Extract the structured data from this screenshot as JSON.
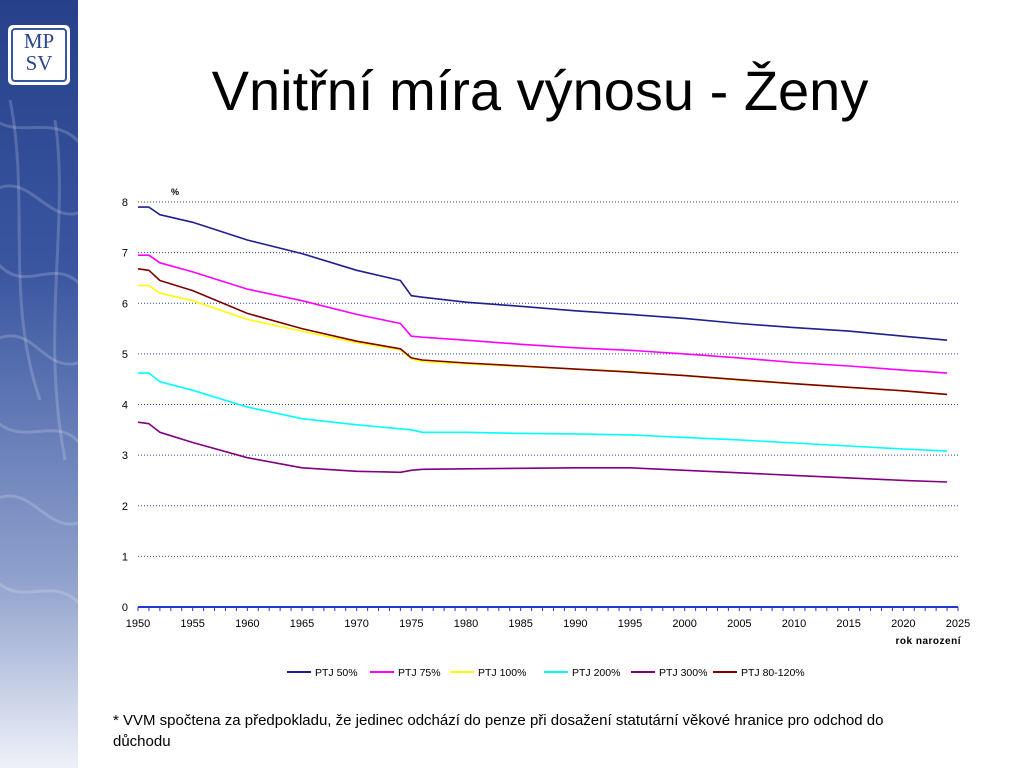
{
  "slide": {
    "title": "Vnitřní míra výnosu - Ženy",
    "logo_line1": "MP",
    "logo_line2": "SV",
    "footnote": "* VVM spočtena za předpokladu, že jedinec odchází do penze při dosažení statutární věkové hranice pro odchod do důchodu"
  },
  "chart_data": {
    "type": "line",
    "title": "",
    "xlabel": "rok narození",
    "ylabel": "%",
    "xlim": [
      1950,
      2025
    ],
    "ylim": [
      0,
      8
    ],
    "x_ticks": [
      "1950",
      "1955",
      "1960",
      "1965",
      "1970",
      "1975",
      "1980",
      "1985",
      "1990",
      "1995",
      "2000",
      "2005",
      "2010",
      "2015",
      "2020",
      "2025"
    ],
    "y_ticks": [
      "0",
      "1",
      "2",
      "3",
      "4",
      "5",
      "6",
      "7",
      "8"
    ],
    "grid": "horizontal dotted",
    "legend": "bottom",
    "x": [
      1950,
      1951,
      1952,
      1955,
      1960,
      1965,
      1970,
      1974,
      1975,
      1976,
      1980,
      1985,
      1990,
      1995,
      2000,
      2005,
      2010,
      2015,
      2020,
      2024
    ],
    "series": [
      {
        "name": "PTJ 50%",
        "color": "#1f1f8f",
        "values": [
          7.9,
          7.9,
          7.75,
          7.6,
          7.25,
          6.98,
          6.65,
          6.45,
          6.15,
          6.12,
          6.02,
          5.94,
          5.85,
          5.78,
          5.7,
          5.6,
          5.52,
          5.45,
          5.35,
          5.27
        ]
      },
      {
        "name": "PTJ 75%",
        "color": "#ff00ff",
        "values": [
          6.95,
          6.95,
          6.8,
          6.62,
          6.28,
          6.05,
          5.78,
          5.6,
          5.35,
          5.33,
          5.27,
          5.19,
          5.12,
          5.07,
          5.0,
          4.92,
          4.83,
          4.76,
          4.68,
          4.62
        ]
      },
      {
        "name": "PTJ 100%",
        "color": "#ffff00",
        "values": [
          6.35,
          6.35,
          6.2,
          6.05,
          5.68,
          5.45,
          5.22,
          5.08,
          4.9,
          4.85,
          4.8,
          4.75,
          4.7,
          4.65,
          4.57,
          4.48,
          4.41,
          4.34,
          4.27,
          4.2
        ]
      },
      {
        "name": "PTJ 200%",
        "color": "#00ffff",
        "values": [
          4.62,
          4.62,
          4.45,
          4.28,
          3.95,
          3.72,
          3.6,
          3.52,
          3.5,
          3.45,
          3.45,
          3.43,
          3.42,
          3.4,
          3.35,
          3.3,
          3.24,
          3.18,
          3.12,
          3.08
        ]
      },
      {
        "name": "PTJ 300%",
        "color": "#800080",
        "values": [
          3.65,
          3.62,
          3.45,
          3.25,
          2.95,
          2.75,
          2.68,
          2.66,
          2.7,
          2.72,
          2.73,
          2.74,
          2.75,
          2.75,
          2.7,
          2.65,
          2.6,
          2.55,
          2.5,
          2.47
        ]
      },
      {
        "name": "PTJ 80-120%",
        "color": "#800000",
        "values": [
          6.68,
          6.65,
          6.45,
          6.25,
          5.8,
          5.5,
          5.25,
          5.1,
          4.92,
          4.88,
          4.82,
          4.76,
          4.7,
          4.64,
          4.57,
          4.49,
          4.41,
          4.34,
          4.27,
          4.2
        ]
      }
    ]
  }
}
